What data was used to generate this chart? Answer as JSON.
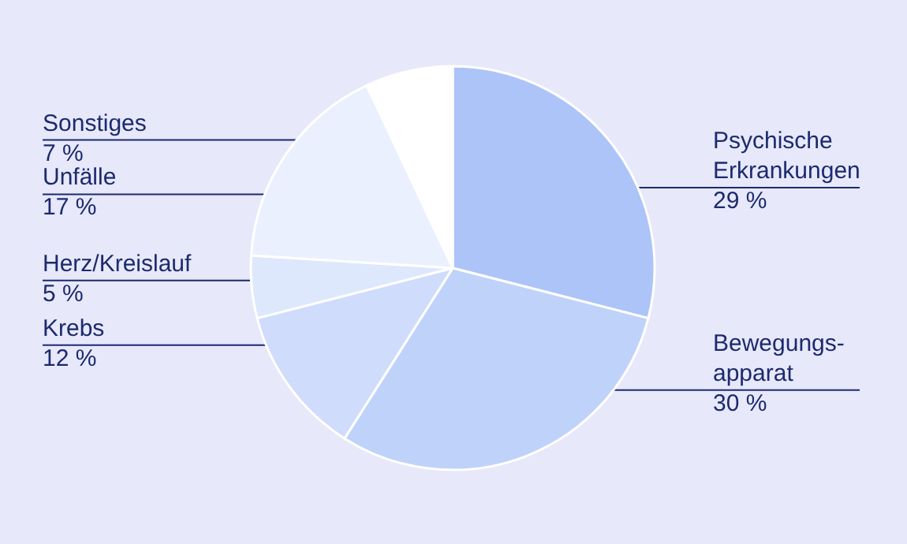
{
  "chart_data": {
    "type": "pie",
    "categories": [
      "Psychische Erkrankungen",
      "Bewegungs-apparat",
      "Krebs",
      "Herz/Kreislauf",
      "Unfälle",
      "Sonstiges"
    ],
    "values": [
      29,
      30,
      12,
      5,
      17,
      7
    ],
    "value_labels": [
      "29 %",
      "30 %",
      "12 %",
      "5 %",
      "17 %",
      "7 %"
    ],
    "colors": [
      "#adc4f8",
      "#bfd2fa",
      "#cfdcfb",
      "#dee8fd",
      "#ebf0fe",
      "#ffffff"
    ]
  }
}
